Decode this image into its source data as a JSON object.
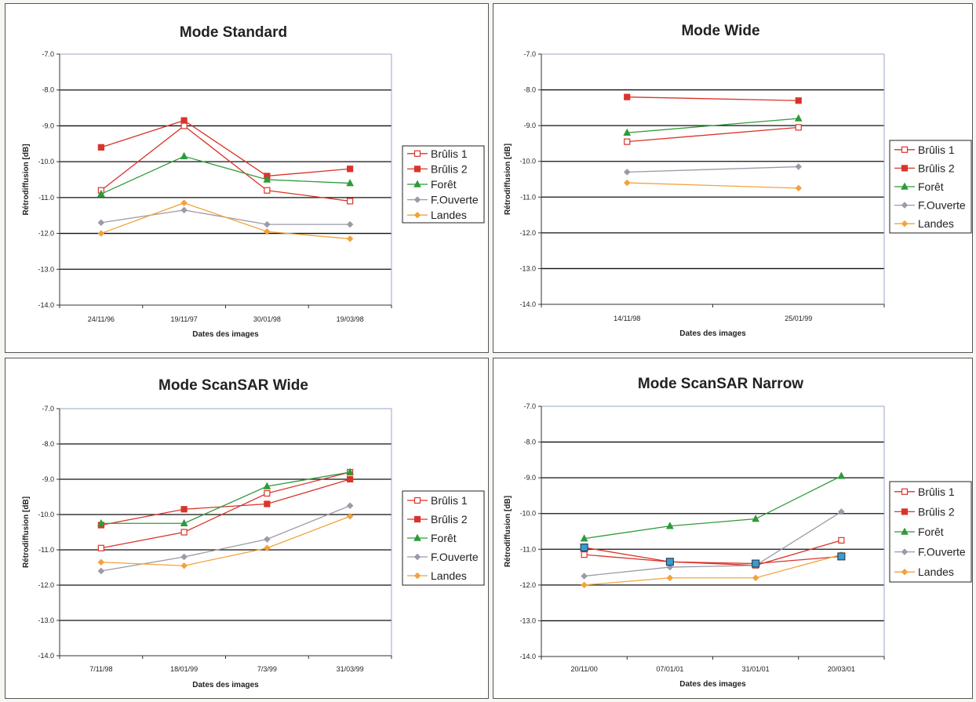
{
  "chart_data": [
    {
      "type": "line",
      "title": "Mode Standard",
      "xlabel": "Dates des images",
      "ylabel": "Rétrodiffusion [dB]",
      "ylim": [
        -14.0,
        -7.0
      ],
      "yticks": [
        "-7.0",
        "-8.0",
        "-9.0",
        "-10.0",
        "-11.0",
        "-12.0",
        "-13.0",
        "-14.0"
      ],
      "categories": [
        "24/11/96",
        "19/11/97",
        "30/01/98",
        "19/03/98"
      ],
      "grid": true,
      "legend": "right",
      "series": [
        {
          "name": "Brûlis 1",
          "color": "#d9342b",
          "marker": "square-open",
          "values": [
            -10.8,
            -9.0,
            -10.8,
            -11.1
          ]
        },
        {
          "name": "Brûlis 2",
          "color": "#d9342b",
          "marker": "square",
          "values": [
            -9.6,
            -8.85,
            -10.4,
            -10.2
          ]
        },
        {
          "name": "Forêt",
          "color": "#2f9a3a",
          "marker": "triangle",
          "values": [
            -10.9,
            -9.85,
            -10.5,
            -10.6
          ]
        },
        {
          "name": "F.Ouverte",
          "color": "#9a9aa8",
          "marker": "diamond",
          "values": [
            -11.7,
            -11.35,
            -11.75,
            -11.75
          ]
        },
        {
          "name": "Landes",
          "color": "#f2a23c",
          "marker": "diamond",
          "values": [
            -12.0,
            -11.15,
            -11.95,
            -12.15
          ]
        }
      ]
    },
    {
      "type": "line",
      "title": "Mode Wide",
      "xlabel": "Dates des images",
      "ylabel": "Rétrodiffusion [dB]",
      "ylim": [
        -14.0,
        -7.0
      ],
      "yticks": [
        "-7.0",
        "-8.0",
        "-9.0",
        "-10.0",
        "-11.0",
        "-12.0",
        "-13.0",
        "-14.0"
      ],
      "categories": [
        "14/11/98",
        "25/01/99"
      ],
      "grid": true,
      "legend": "right",
      "series": [
        {
          "name": "Brûlis 1",
          "color": "#d9342b",
          "marker": "square-open",
          "values": [
            -9.45,
            -9.05
          ]
        },
        {
          "name": "Brûlis 2",
          "color": "#d9342b",
          "marker": "square",
          "values": [
            -8.2,
            -8.3
          ]
        },
        {
          "name": "Forêt",
          "color": "#2f9a3a",
          "marker": "triangle",
          "values": [
            -9.2,
            -8.8
          ]
        },
        {
          "name": "F.Ouverte",
          "color": "#9a9aa8",
          "marker": "diamond",
          "values": [
            -10.3,
            -10.15
          ]
        },
        {
          "name": "Landes",
          "color": "#f2a23c",
          "marker": "diamond",
          "values": [
            -10.6,
            -10.75
          ]
        }
      ]
    },
    {
      "type": "line",
      "title": "Mode ScanSAR Wide",
      "xlabel": "Dates des images",
      "ylabel": "Rétrodiffusion [dB]",
      "ylim": [
        -14.0,
        -7.0
      ],
      "yticks": [
        "-7.0",
        "-8.0",
        "-9.0",
        "-10.0",
        "-11.0",
        "-12.0",
        "-13.0",
        "-14.0"
      ],
      "categories": [
        "7/11/98",
        "18/01/99",
        "7/3/99",
        "31/03/99"
      ],
      "grid": true,
      "legend": "right",
      "series": [
        {
          "name": "Brûlis 1",
          "color": "#d9342b",
          "marker": "square-open",
          "values": [
            -10.95,
            -10.5,
            -9.4,
            -8.8
          ]
        },
        {
          "name": "Brûlis 2",
          "color": "#d9342b",
          "marker": "square",
          "values": [
            -10.3,
            -9.85,
            -9.7,
            -9.0
          ]
        },
        {
          "name": "Forêt",
          "color": "#2f9a3a",
          "marker": "triangle",
          "values": [
            -10.25,
            -10.25,
            -9.2,
            -8.8
          ]
        },
        {
          "name": "F.Ouverte",
          "color": "#9a9aa8",
          "marker": "diamond",
          "values": [
            -11.6,
            -11.2,
            -10.7,
            -9.75
          ]
        },
        {
          "name": "Landes",
          "color": "#f2a23c",
          "marker": "diamond",
          "values": [
            -11.35,
            -11.45,
            -10.95,
            -10.05
          ]
        }
      ]
    },
    {
      "type": "line",
      "title": "Mode ScanSAR Narrow",
      "xlabel": "Dates des images",
      "ylabel": "Rétrodiffusion [dB]",
      "ylim": [
        -14.0,
        -7.0
      ],
      "yticks": [
        "-7.0",
        "-8.0",
        "-9.0",
        "-10.0",
        "-11.0",
        "-12.0",
        "-13.0",
        "-14.0"
      ],
      "categories": [
        "20/11/00",
        "07/01/01",
        "31/01/01",
        "20/03/01"
      ],
      "grid": true,
      "legend": "right",
      "series": [
        {
          "name": "Brûlis 1",
          "color": "#d9342b",
          "marker": "square-open",
          "values": [
            -11.15,
            -11.35,
            -11.45,
            -10.75
          ]
        },
        {
          "name": "Brûlis 2",
          "color": "#d9342b",
          "marker": "square",
          "values": [
            -10.95,
            -11.35,
            -11.4,
            -11.2
          ]
        },
        {
          "name": "Forêt",
          "color": "#2f9a3a",
          "marker": "triangle",
          "values": [
            -10.7,
            -10.35,
            -10.15,
            -8.95
          ]
        },
        {
          "name": "F.Ouverte",
          "color": "#9a9aa8",
          "marker": "diamond",
          "values": [
            -11.75,
            -11.5,
            -11.45,
            -9.95
          ]
        },
        {
          "name": "Landes",
          "color": "#f2a23c",
          "marker": "diamond",
          "values": [
            -12.0,
            -11.8,
            -11.8,
            -11.15
          ]
        }
      ],
      "highlight_color": "#3a9bd0"
    }
  ]
}
